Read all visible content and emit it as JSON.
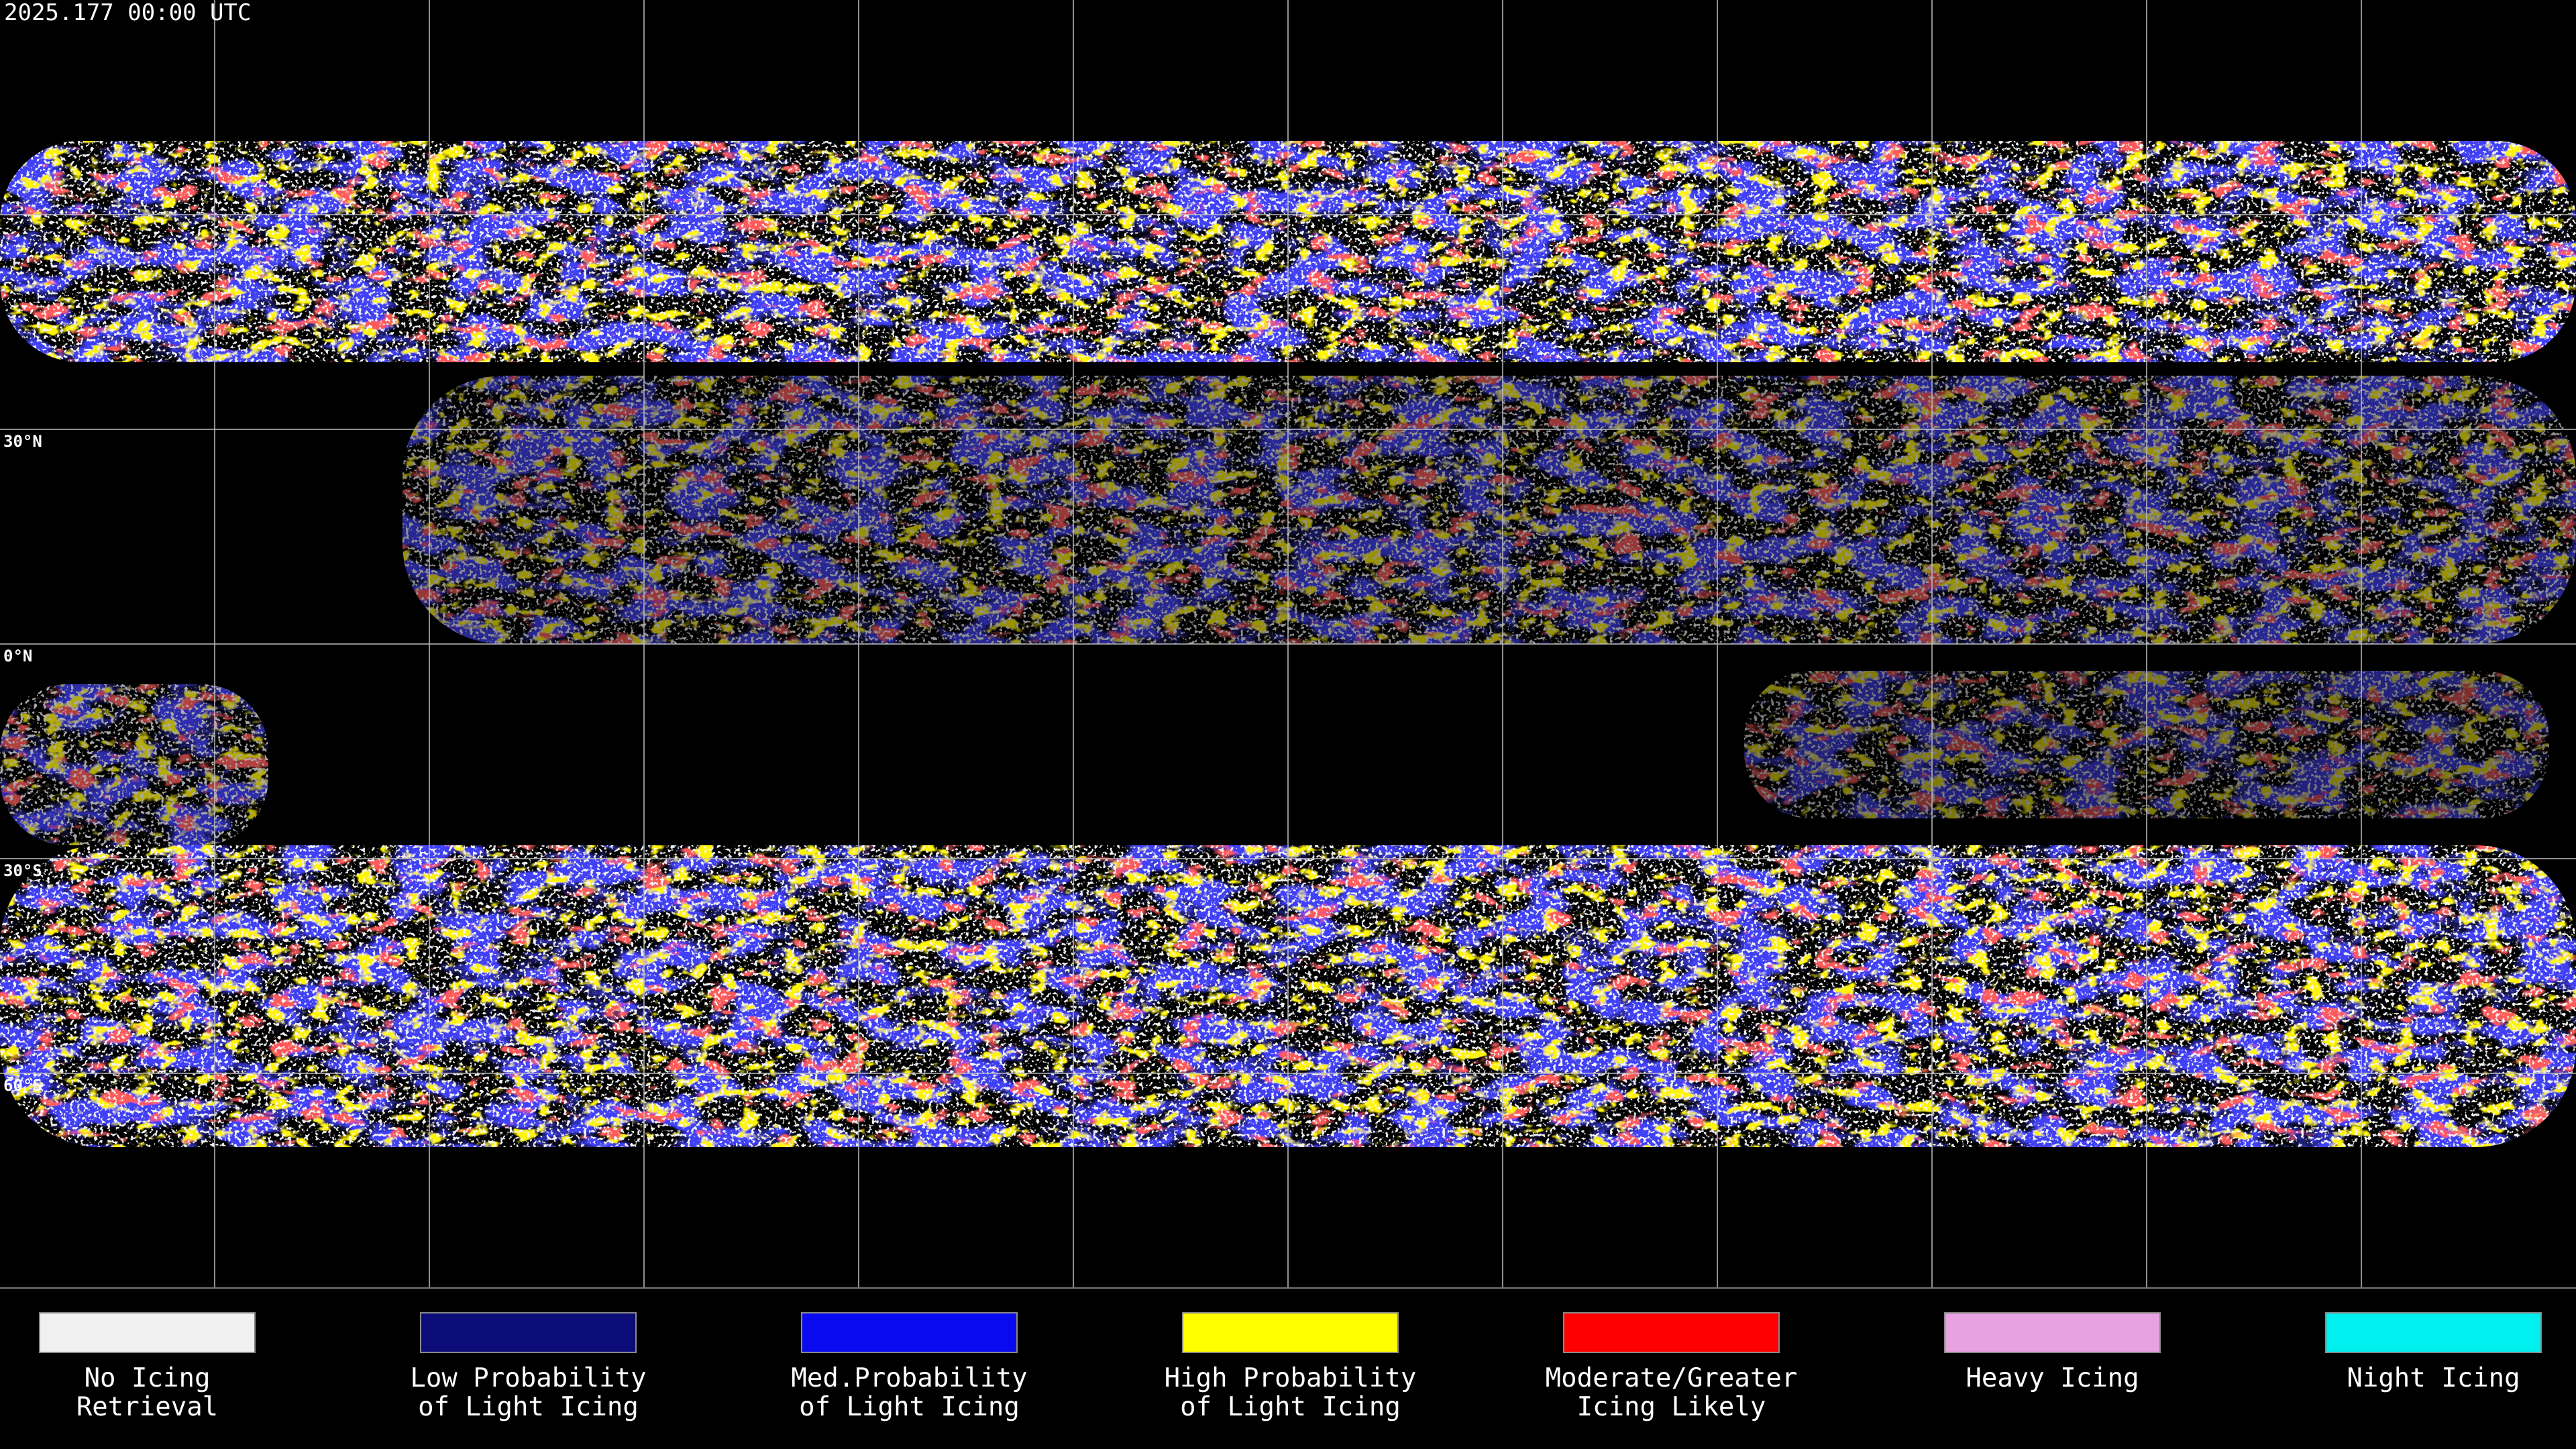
{
  "header": {
    "timestamp": "2025.177 00:00 UTC"
  },
  "map": {
    "lat_labels": [
      {
        "value": 30,
        "label": "30°N"
      },
      {
        "value": 0,
        "label": "0°N"
      },
      {
        "value": -30,
        "label": "30°S"
      },
      {
        "value": -60,
        "label": "60°S"
      }
    ]
  },
  "legend": [
    {
      "color": "#f0f0f0",
      "lines": [
        "No Icing",
        "Retrieval"
      ]
    },
    {
      "color": "#0c0c78",
      "lines": [
        "Low Probability",
        "of Light Icing"
      ]
    },
    {
      "color": "#0a0af0",
      "lines": [
        "Med.Probability",
        "of Light Icing"
      ]
    },
    {
      "color": "#ffff00",
      "lines": [
        "High Probability",
        "of Light Icing"
      ]
    },
    {
      "color": "#ff0000",
      "lines": [
        "Moderate/Greater",
        "Icing Likely"
      ]
    },
    {
      "color": "#e8a2e0",
      "lines": [
        "Heavy Icing"
      ]
    },
    {
      "color": "#00f0f0",
      "lines": [
        "Night Icing"
      ]
    }
  ]
}
